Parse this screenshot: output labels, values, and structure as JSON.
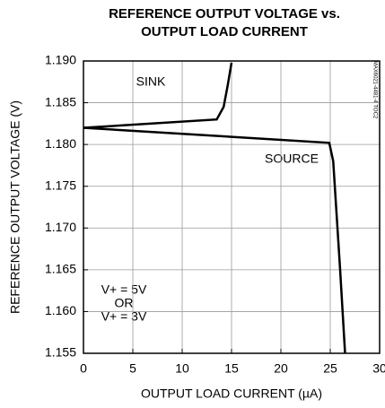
{
  "chart_data": {
    "type": "line",
    "title": [
      "REFERENCE OUTPUT VOLTAGE vs.",
      "OUTPUT LOAD CURRENT"
    ],
    "x_label": "OUTPUT LOAD CURRENT (µA)",
    "y_label": "REFERENCE OUTPUT VOLTAGE (V)",
    "xlim": [
      0,
      30
    ],
    "xticks": [
      0,
      5,
      10,
      15,
      20,
      25,
      30
    ],
    "ylim": [
      1.155,
      1.19
    ],
    "yticks": [
      {
        "value": 1.155,
        "label": "1.155"
      },
      {
        "value": 1.16,
        "label": "1.160"
      },
      {
        "value": 1.165,
        "label": "1.165"
      },
      {
        "value": 1.17,
        "label": "1.170"
      },
      {
        "value": 1.175,
        "label": "1.175"
      },
      {
        "value": 1.18,
        "label": "1.180"
      },
      {
        "value": 1.185,
        "label": "1.185"
      },
      {
        "value": 1.19,
        "label": "1.190"
      }
    ],
    "grid": true,
    "series": [
      {
        "name": "SINK",
        "color": "#000000",
        "x": [
          0,
          13.5,
          14.2,
          14.6,
          15
        ],
        "values": [
          1.182,
          1.183,
          1.1845,
          1.187,
          1.1898
        ]
      },
      {
        "name": "SOURCE",
        "color": "#000000",
        "x": [
          0,
          24.9,
          25.3,
          26,
          26.5
        ],
        "values": [
          1.182,
          1.1802,
          1.178,
          1.165,
          1.155
        ]
      }
    ],
    "annotations": [
      "V+ = 5V",
      "OR",
      "V+ = 3V",
      "MAX6021-4481-4 TOC2"
    ]
  }
}
